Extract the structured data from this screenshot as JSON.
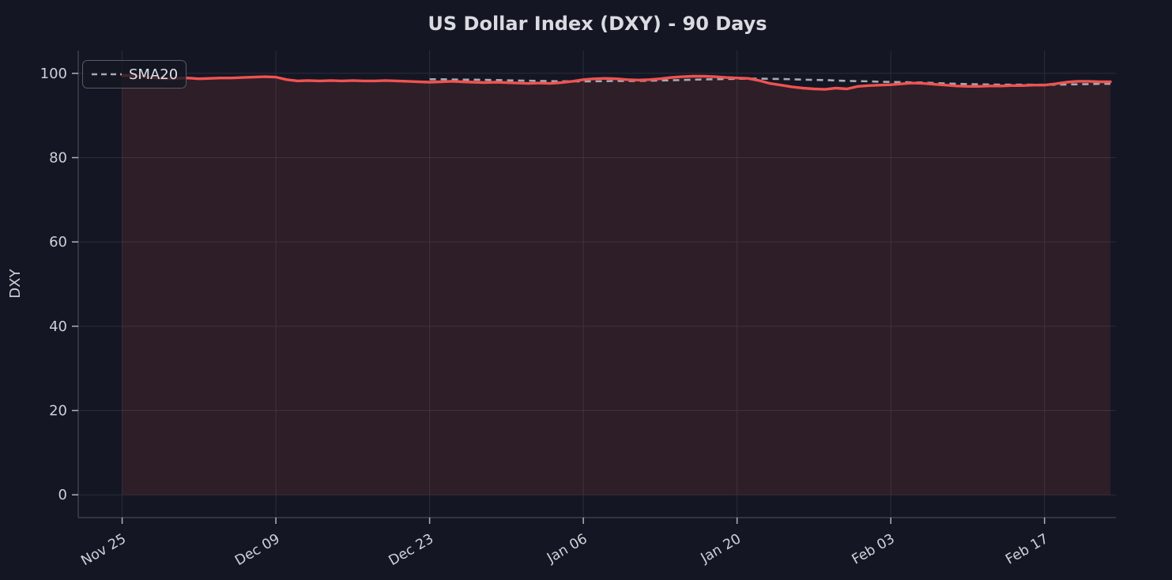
{
  "title": "US Dollar Index (DXY) - 90 Days",
  "legend": {
    "position": "upper left",
    "items": [
      {
        "label": "SMA20",
        "line_style": "dashed",
        "color": "#a6aab2"
      }
    ]
  },
  "colors": {
    "background": "#141723",
    "plot_background": "#141723",
    "dxy_line": "#ef5350",
    "area_fill": "rgba(239,83,80,0.12)",
    "sma_line": "#a6aab2",
    "grid": "#2a2e3a",
    "spine": "#434752",
    "tick_mark": "#b0b3bb",
    "tick_label": "#ced1d8",
    "title_text": "#d9dbe1",
    "axis_label_text": "#ced1d8",
    "legend_text": "#e0e2e7",
    "legend_border": "#565b66",
    "legend_fill": "rgba(20,23,35,0.78)"
  },
  "chart_data": {
    "type": "line",
    "title": "US Dollar Index (DXY) - 90 Days",
    "xlabel": "",
    "ylabel": "DXY",
    "grid": true,
    "legend_position": "upper left",
    "ylim": [
      -5.4,
      105.4
    ],
    "xlim_days": [
      -4,
      90.5
    ],
    "y_ticks": [
      0,
      20,
      40,
      60,
      80,
      100
    ],
    "x_ticks": [
      {
        "day": 0,
        "label": "Nov 25"
      },
      {
        "day": 14,
        "label": "Dec 09"
      },
      {
        "day": 28,
        "label": "Dec 23"
      },
      {
        "day": 42,
        "label": "Jan 06"
      },
      {
        "day": 56,
        "label": "Jan 20"
      },
      {
        "day": 70,
        "label": "Feb 03"
      },
      {
        "day": 84,
        "label": "Feb 17"
      }
    ],
    "x_unit": "days since Nov 25",
    "date_range": {
      "start": "Nov 25",
      "end": "Feb 23",
      "span_days": 90
    },
    "area_fill_under": "DXY",
    "sma_window": 20,
    "series": [
      {
        "name": "DXY",
        "style": "solid",
        "color": "#ef5350",
        "x_day_start": 0,
        "values": [
          99.5,
          99.4,
          99.2,
          98.9,
          98.7,
          98.8,
          98.9,
          98.7,
          98.8,
          98.9,
          98.9,
          99.0,
          99.1,
          99.2,
          99.1,
          98.5,
          98.2,
          98.3,
          98.2,
          98.3,
          98.2,
          98.3,
          98.2,
          98.2,
          98.3,
          98.2,
          98.1,
          98.0,
          97.9,
          98.0,
          98.1,
          98.0,
          97.9,
          97.8,
          97.9,
          97.8,
          97.7,
          97.6,
          97.7,
          97.6,
          97.8,
          98.1,
          98.5,
          98.7,
          98.8,
          98.7,
          98.5,
          98.4,
          98.5,
          98.7,
          99.0,
          99.2,
          99.3,
          99.3,
          99.2,
          99.0,
          98.9,
          98.8,
          98.3,
          97.6,
          97.2,
          96.8,
          96.5,
          96.3,
          96.2,
          96.5,
          96.3,
          96.9,
          97.1,
          97.2,
          97.3,
          97.5,
          97.7,
          97.6,
          97.4,
          97.2,
          97.0,
          96.9,
          96.9,
          97.0,
          97.0,
          97.1,
          97.1,
          97.2,
          97.2,
          97.5,
          97.9,
          98.1,
          98.1,
          98.0,
          98.0
        ]
      },
      {
        "name": "SMA20",
        "style": "dashed",
        "color": "#a6aab2",
        "x_day_start": 28,
        "values": [
          98.6,
          98.6,
          98.55,
          98.5,
          98.5,
          98.45,
          98.4,
          98.35,
          98.3,
          98.25,
          98.2,
          98.15,
          98.1,
          98.1,
          98.1,
          98.1,
          98.15,
          98.2,
          98.2,
          98.2,
          98.25,
          98.3,
          98.35,
          98.4,
          98.5,
          98.55,
          98.6,
          98.65,
          98.7,
          98.75,
          98.75,
          98.7,
          98.65,
          98.6,
          98.5,
          98.45,
          98.4,
          98.3,
          98.2,
          98.15,
          98.1,
          98.0,
          97.95,
          97.9,
          97.85,
          97.8,
          97.7,
          97.6,
          97.5,
          97.45,
          97.4,
          97.35,
          97.3,
          97.3,
          97.3,
          97.3,
          97.3,
          97.3,
          97.35,
          97.4,
          97.45,
          97.5,
          97.5
        ]
      }
    ]
  }
}
